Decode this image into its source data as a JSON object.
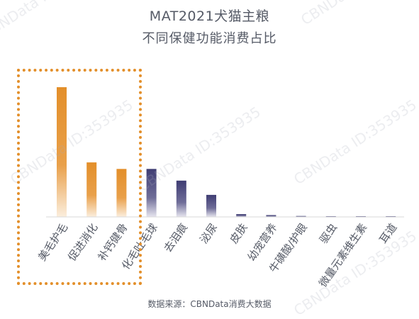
{
  "watermark_text": "CBNData ID:353935",
  "source": "数据来源：CBNData消费大数据",
  "colors": {
    "highlight": "#e38f2a",
    "other": "#3f3d73",
    "axis": "#d9d9d9",
    "text": "#555a66"
  },
  "chart_data": {
    "type": "bar",
    "title": "MAT2021犬猫主粮",
    "subtitle": "不同保健功能消费占比",
    "xlabel": "",
    "ylabel": "",
    "y_axis_visible": false,
    "grid": false,
    "legend": "none",
    "categories": [
      "美毛护毛",
      "促进消化",
      "补钙健骨",
      "化毛吐毛球",
      "去泪痕",
      "泌尿",
      "皮肤",
      "幼宠营养",
      "牛磺酸/护眼",
      "驱虫",
      "微量元素维生素",
      "耳道"
    ],
    "values": [
      100,
      42,
      37,
      37,
      28,
      17,
      2.2,
      1.4,
      0.7,
      0.35,
      0.1,
      0.05
    ],
    "highlighted_categories": [
      "美毛护毛",
      "促进消化",
      "补钙健骨"
    ],
    "ylim": [
      0,
      100
    ]
  }
}
